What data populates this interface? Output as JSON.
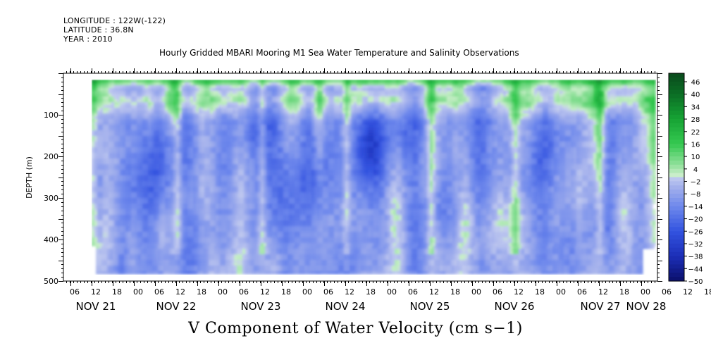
{
  "header": {
    "longitude": "LONGITUDE : 122W(-122)",
    "latitude": "LATITUDE : 36.8N",
    "year": "YEAR : 2010"
  },
  "chart_data": {
    "type": "heatmap",
    "title": "Hourly Gridded MBARI Mooring M1 Sea Water Temperature and Salinity Observations",
    "xlabel": "V Component of Water Velocity (cm s−1)",
    "ylabel": "DEPTH (m)",
    "ylim": [
      500,
      0
    ],
    "y_ticks": [
      100,
      200,
      300,
      400,
      500
    ],
    "x_hour_labels": [
      "06",
      "12",
      "18",
      "00",
      "06",
      "12",
      "18",
      "00",
      "06",
      "12",
      "18",
      "00",
      "06",
      "12",
      "18",
      "00",
      "06",
      "12",
      "18",
      "00",
      "06",
      "12",
      "18",
      "00",
      "06",
      "12",
      "18",
      "00",
      "06",
      "12",
      "18",
      "00"
    ],
    "x_day_labels": [
      "NOV 21",
      "NOV 22",
      "NOV 23",
      "NOV 24",
      "NOV 25",
      "NOV 26",
      "NOV 27",
      "NOV 28"
    ],
    "colorbar": {
      "labels": [
        "46",
        "40",
        "34",
        "28",
        "22",
        "16",
        "10",
        "4",
        "−2",
        "−8",
        "−14",
        "−20",
        "−26",
        "−32",
        "−38",
        "−44",
        "−50"
      ],
      "range": [
        -50,
        50
      ]
    }
  },
  "colors": {
    "strong_positive": "#0a4a1c",
    "positive": "#1fbf3a",
    "weak_positive": "#b8ecb8",
    "weak_negative": "#a9b4ea",
    "negative": "#4d6ee6",
    "strong_negative": "#0a0f6a"
  }
}
